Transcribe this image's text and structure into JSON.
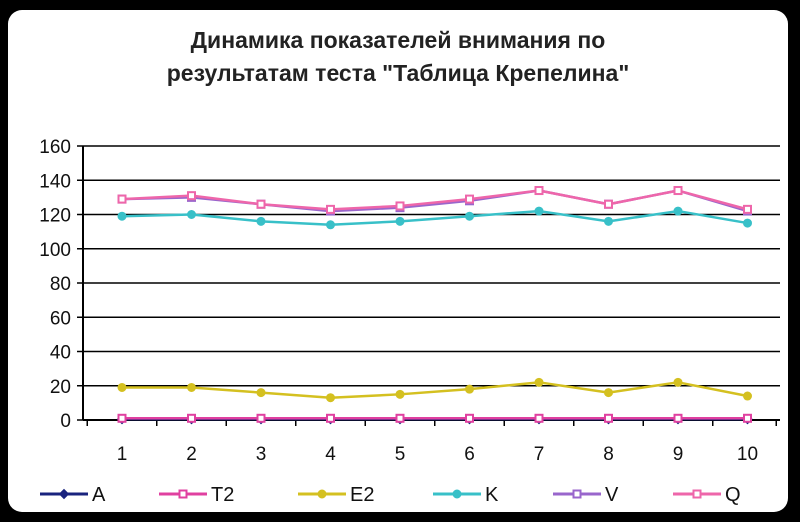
{
  "chart_data": {
    "type": "line",
    "title_lines": [
      "Динамика показателей внимания по",
      "результатам теста \"Таблица Крепелина\""
    ],
    "x": [
      1,
      2,
      3,
      4,
      5,
      6,
      7,
      8,
      9,
      10
    ],
    "x_tick_labels": [
      "1",
      "2",
      "3",
      "4",
      "5",
      "6",
      "7",
      "8",
      "9",
      "10"
    ],
    "ylim": [
      0,
      160
    ],
    "y_ticks": [
      0,
      20,
      40,
      60,
      80,
      100,
      120,
      140,
      160
    ],
    "y_tick_labels": [
      "0",
      "20",
      "40",
      "60",
      "80",
      "100",
      "120",
      "140",
      "160"
    ],
    "grid": true,
    "legend_position": "bottom",
    "series": [
      {
        "name": "A",
        "color": "#1a237e",
        "marker": "diamond",
        "values": [
          0.5,
          0.5,
          0.5,
          0.5,
          0.5,
          0.5,
          0.5,
          0.5,
          0.5,
          0.5
        ]
      },
      {
        "name": "T2",
        "color": "#e040a0",
        "marker": "square",
        "values": [
          1,
          1,
          1,
          1,
          1,
          1,
          1,
          1,
          1,
          1
        ]
      },
      {
        "name": "E2",
        "color": "#d4c020",
        "marker": "circle",
        "values": [
          19,
          19,
          16,
          13,
          15,
          18,
          22,
          16,
          22,
          14
        ]
      },
      {
        "name": "K",
        "color": "#38c0c8",
        "marker": "circle",
        "values": [
          119,
          120,
          116,
          114,
          116,
          119,
          122,
          116,
          122,
          115
        ]
      },
      {
        "name": "V",
        "color": "#9966cc",
        "marker": "square",
        "values": [
          129,
          130,
          126,
          122,
          124,
          128,
          134,
          126,
          134,
          122
        ]
      },
      {
        "name": "Q",
        "color": "#ee66aa",
        "marker": "square",
        "values": [
          129,
          131,
          126,
          123,
          125,
          129,
          134,
          126,
          134,
          123
        ]
      }
    ]
  }
}
